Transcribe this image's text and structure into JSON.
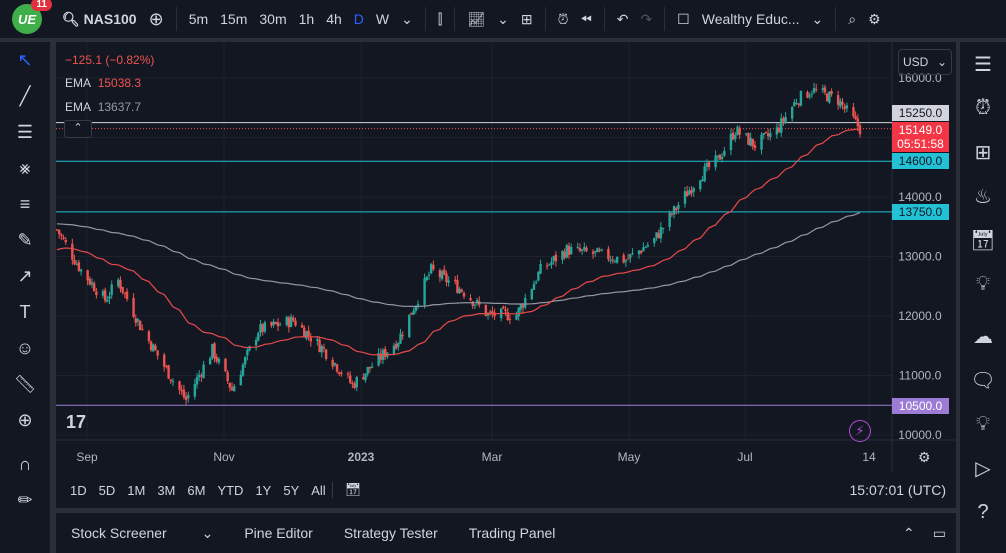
{
  "topbar": {
    "logo_badge": "11",
    "symbol": "NAS100",
    "intervals": [
      "5m",
      "15m",
      "30m",
      "1h",
      "4h",
      "D",
      "W"
    ],
    "active_interval": "D",
    "layout_name": "Wealthy Educ..."
  },
  "legend": {
    "change": "−125.1 (−0.82%)",
    "ema1_label": "EMA",
    "ema1_value": "15038.3",
    "ema2_label": "EMA",
    "ema2_value": "13637.7"
  },
  "currency": "USD",
  "price_axis": {
    "ticks": [
      "16000.0",
      "14000.0",
      "13000.0",
      "12000.0",
      "11000.0",
      "10000.0"
    ]
  },
  "price_labels": {
    "level_15250": "15250.0",
    "current": "15149.0",
    "countdown": "05:51:58",
    "level_14600": "14600.0",
    "level_13750": "13750.0",
    "level_10500": "10500.0"
  },
  "time_axis": [
    "Sep",
    "Nov",
    "2023",
    "Mar",
    "May",
    "Jul",
    "14"
  ],
  "range_buttons": [
    "1D",
    "5D",
    "1M",
    "3M",
    "6M",
    "YTD",
    "1Y",
    "5Y",
    "All"
  ],
  "clock": "15:07:01 (UTC)",
  "bottom_tabs": [
    "Stock Screener",
    "Pine Editor",
    "Strategy Tester",
    "Trading Panel"
  ],
  "colors": {
    "up": "#26a69a",
    "down": "#ef5350",
    "ema_fast": "#e84a4a",
    "ema_slow": "#9598a1",
    "level": "#22c1d6",
    "support": "#9c7cd4",
    "accent": "#2962ff"
  },
  "chart_data": {
    "type": "candlestick",
    "symbol": "NAS100",
    "timeframe": "D",
    "ylim": [
      10000,
      16200
    ],
    "levels": [
      15250,
      14600,
      13750,
      10500
    ],
    "last": 15149,
    "approx_closes": [
      [
        "2022-08-15",
        13450
      ],
      [
        "2022-08-26",
        12770
      ],
      [
        "2022-09-06",
        12270
      ],
      [
        "2022-09-12",
        12600
      ],
      [
        "2022-09-23",
        11760
      ],
      [
        "2022-10-07",
        10920
      ],
      [
        "2022-10-13",
        10590
      ],
      [
        "2022-10-25",
        11430
      ],
      [
        "2022-11-03",
        10760
      ],
      [
        "2022-11-15",
        11760
      ],
      [
        "2022-12-01",
        11930
      ],
      [
        "2022-12-15",
        11430
      ],
      [
        "2022-12-28",
        10840
      ],
      [
        "2023-01-18",
        11600
      ],
      [
        "2023-02-02",
        12770
      ],
      [
        "2023-02-16",
        12440
      ],
      [
        "2023-02-28",
        12020
      ],
      [
        "2023-03-13",
        12020
      ],
      [
        "2023-03-24",
        12770
      ],
      [
        "2023-04-05",
        13110
      ],
      [
        "2023-04-20",
        13030
      ],
      [
        "2023-05-02",
        12940
      ],
      [
        "2023-05-15",
        13280
      ],
      [
        "2023-05-26",
        13870
      ],
      [
        "2023-06-05",
        14370
      ],
      [
        "2023-06-13",
        14620
      ],
      [
        "2023-06-21",
        15120
      ],
      [
        "2023-06-30",
        14870
      ],
      [
        "2023-07-10",
        15120
      ],
      [
        "2023-07-19",
        15630
      ],
      [
        "2023-07-26",
        15800
      ],
      [
        "2023-08-07",
        15630
      ],
      [
        "2023-08-17",
        15149
      ]
    ]
  }
}
